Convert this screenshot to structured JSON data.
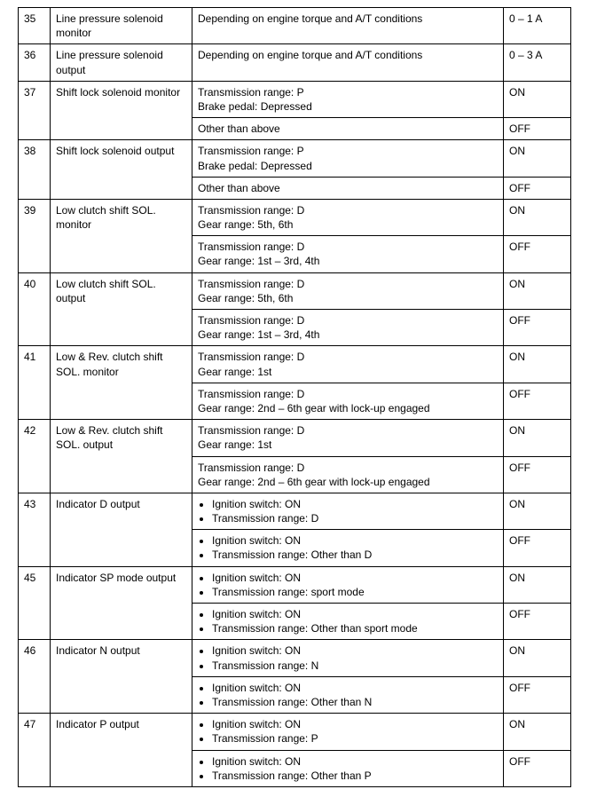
{
  "rows": [
    {
      "num": "35",
      "name": "Line pressure solenoid monitor",
      "subs": [
        {
          "cond_text": "Depending on engine torque and A/T conditions",
          "value": "0 – 1 A"
        }
      ]
    },
    {
      "num": "36",
      "name": "Line pressure solenoid output",
      "subs": [
        {
          "cond_text": "Depending on engine torque and A/T conditions",
          "value": "0 – 3 A"
        }
      ]
    },
    {
      "num": "37",
      "name": "Shift lock solenoid monitor",
      "subs": [
        {
          "cond_lines": [
            "Transmission range: P",
            "Brake pedal: Depressed"
          ],
          "value": "ON"
        },
        {
          "cond_text": "Other than above",
          "value": "OFF"
        }
      ]
    },
    {
      "num": "38",
      "name": "Shift lock solenoid output",
      "subs": [
        {
          "cond_lines": [
            "Transmission range: P",
            "Brake pedal: Depressed"
          ],
          "value": "ON"
        },
        {
          "cond_text": "Other than above",
          "value": "OFF"
        }
      ]
    },
    {
      "num": "39",
      "name": "Low clutch shift SOL. monitor",
      "subs": [
        {
          "cond_lines": [
            "Transmission range: D",
            "Gear range: 5th, 6th"
          ],
          "value": "ON"
        },
        {
          "cond_lines": [
            "Transmission range: D",
            "Gear range: 1st – 3rd, 4th"
          ],
          "value": "OFF"
        }
      ]
    },
    {
      "num": "40",
      "name": "Low clutch shift SOL. output",
      "subs": [
        {
          "cond_lines": [
            "Transmission range: D",
            "Gear range: 5th, 6th"
          ],
          "value": "ON"
        },
        {
          "cond_lines": [
            "Transmission range: D",
            "Gear range: 1st – 3rd, 4th"
          ],
          "value": "OFF"
        }
      ]
    },
    {
      "num": "41",
      "name": "Low & Rev. clutch shift SOL. monitor",
      "subs": [
        {
          "cond_lines": [
            "Transmission range: D",
            "Gear range: 1st"
          ],
          "value": "ON"
        },
        {
          "cond_lines": [
            "Transmission range: D",
            "Gear range: 2nd – 6th gear with lock-up engaged"
          ],
          "value": "OFF"
        }
      ]
    },
    {
      "num": "42",
      "name": "Low & Rev. clutch shift SOL. output",
      "subs": [
        {
          "cond_lines": [
            "Transmission range: D",
            "Gear range: 1st"
          ],
          "value": "ON"
        },
        {
          "cond_lines": [
            "Transmission range: D",
            "Gear range: 2nd – 6th gear with lock-up engaged"
          ],
          "value": "OFF"
        }
      ]
    },
    {
      "num": "43",
      "name": "Indicator D output",
      "subs": [
        {
          "cond_bullets": [
            "Ignition switch: ON",
            "Transmission range: D"
          ],
          "value": "ON"
        },
        {
          "cond_bullets": [
            "Ignition switch: ON",
            "Transmission range: Other than D"
          ],
          "value": "OFF"
        }
      ]
    },
    {
      "num": "45",
      "name": "Indicator SP mode output",
      "subs": [
        {
          "cond_bullets": [
            "Ignition switch: ON",
            "Transmission range: sport mode"
          ],
          "value": "ON"
        },
        {
          "cond_bullets": [
            "Ignition switch: ON",
            "Transmission range: Other than sport mode"
          ],
          "value": "OFF"
        }
      ]
    },
    {
      "num": "46",
      "name": "Indicator N output",
      "subs": [
        {
          "cond_bullets": [
            "Ignition switch: ON",
            "Transmission range: N"
          ],
          "value": "ON"
        },
        {
          "cond_bullets": [
            "Ignition switch: ON",
            "Transmission range: Other than N"
          ],
          "value": "OFF"
        }
      ]
    },
    {
      "num": "47",
      "name": "Indicator P output",
      "subs": [
        {
          "cond_bullets": [
            "Ignition switch: ON",
            "Transmission range: P"
          ],
          "value": "ON"
        },
        {
          "cond_bullets": [
            "Ignition switch: ON",
            "Transmission range: Other than P"
          ],
          "value": "OFF"
        }
      ]
    }
  ]
}
